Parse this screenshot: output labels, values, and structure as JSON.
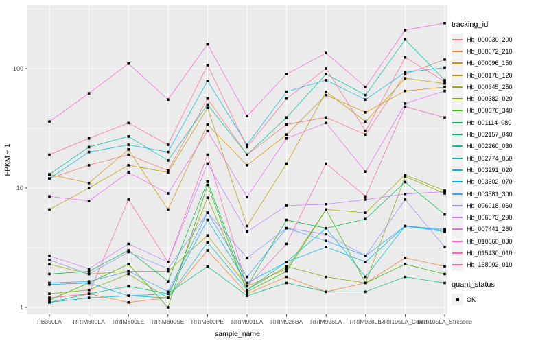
{
  "figure": {
    "background": "#FFFFFF",
    "panel_background": "#EBEBEB",
    "grid_color": "#FFFFFF",
    "tick_label_color": "#4D4D4D",
    "axis_title_color": "#000000",
    "legend_key_background": "#F2F2F2",
    "point_color": "#000000"
  },
  "chart_data": {
    "type": "line",
    "title": "",
    "xlabel": "sample_name",
    "ylabel": "FPKM + 1",
    "y_scale": "log10",
    "y_tick_labels": [
      "1",
      "10",
      "100"
    ],
    "y_tick_values": [
      1,
      10,
      100
    ],
    "y_minor_values": [
      3.162,
      31.62,
      316.2
    ],
    "ylim": [
      1,
      338
    ],
    "grid": true,
    "legend_position": "right",
    "categories": [
      "PB350LA",
      "RRIM600LA",
      "RRIM600LE",
      "RRIM600SE",
      "RRIM600PE",
      "RRIM901LA",
      "RRIM928BA",
      "RRIM928LA",
      "RRIM928LE",
      "RRII105LA_Control",
      "RRII105LA_Stressed"
    ],
    "series": [
      {
        "name": "Hb_000030_200",
        "color": "#F8766D",
        "values": [
          12,
          15.5,
          19,
          14,
          56,
          19,
          34,
          39,
          28,
          90,
          119
        ]
      },
      {
        "name": "Hb_000072_210",
        "color": "#EA8331",
        "values": [
          1.2,
          1.3,
          1.1,
          1.2,
          3.0,
          1.3,
          1.8,
          1.35,
          1.6,
          2.6,
          2.2
        ]
      },
      {
        "name": "Hb_000096_150",
        "color": "#D89000",
        "values": [
          13,
          11,
          21,
          6.6,
          34,
          15.5,
          28,
          60,
          43,
          65,
          70
        ]
      },
      {
        "name": "Hb_000178_120",
        "color": "#C09B00",
        "values": [
          6.6,
          10,
          15.5,
          13.5,
          47,
          4.8,
          16,
          64,
          36,
          83,
          75
        ]
      },
      {
        "name": "Hb_000345_250",
        "color": "#A3A500",
        "values": [
          2.3,
          1.9,
          2.0,
          2.0,
          4.0,
          1.5,
          2.1,
          6.6,
          6.2,
          12.9,
          9.5
        ]
      },
      {
        "name": "Hb_000382_020",
        "color": "#7CAE00",
        "values": [
          1.3,
          1.4,
          1.9,
          1.2,
          8.3,
          1.4,
          2.2,
          1.8,
          1.6,
          12.5,
          9.0
        ]
      },
      {
        "name": "Hb_000676_340",
        "color": "#39B600",
        "values": [
          1.15,
          1.6,
          2.3,
          1.0,
          10.6,
          1.35,
          2.0,
          6.6,
          1.6,
          2.3,
          1.9
        ]
      },
      {
        "name": "Hb_001114_080",
        "color": "#00BB4E",
        "values": [
          1.9,
          2.0,
          3.0,
          1.65,
          11.3,
          1.5,
          5.4,
          4.6,
          5.5,
          11.2,
          6.0
        ]
      },
      {
        "name": "Hb_002157_040",
        "color": "#00BF7D",
        "values": [
          1.1,
          1.3,
          1.5,
          1.3,
          2.2,
          1.25,
          1.6,
          1.35,
          1.35,
          1.8,
          1.6
        ]
      },
      {
        "name": "Hb_002260_030",
        "color": "#00C1A3",
        "values": [
          13,
          22,
          27,
          17,
          50,
          19,
          39,
          90,
          60,
          175,
          80
        ]
      },
      {
        "name": "Hb_002774_050",
        "color": "#00BFC4",
        "values": [
          1.1,
          1.2,
          1.25,
          1.2,
          3.5,
          1.4,
          2.4,
          4.6,
          1.8,
          4.8,
          4.3
        ]
      },
      {
        "name": "Hb_003291_020",
        "color": "#00BAE0",
        "values": [
          12,
          20,
          23,
          20,
          79,
          23,
          64,
          80,
          55,
          93,
          102
        ]
      },
      {
        "name": "Hb_003502_070",
        "color": "#00B0F6",
        "values": [
          1.55,
          1.6,
          1.25,
          1.3,
          5.4,
          1.6,
          2.4,
          3.2,
          2.4,
          4.8,
          4.4
        ]
      },
      {
        "name": "Hb_003581_300",
        "color": "#35A2FF",
        "values": [
          1.6,
          1.65,
          2.0,
          1.35,
          6.2,
          1.8,
          4.6,
          3.6,
          2.7,
          4.8,
          4.5
        ]
      },
      {
        "name": "Hb_006018_060",
        "color": "#9590FF",
        "values": [
          2.5,
          1.9,
          2.9,
          2.1,
          6.2,
          2.6,
          4.6,
          4.1,
          2.7,
          8.0,
          3.2
        ]
      },
      {
        "name": "Hb_006573_290",
        "color": "#C77CFF",
        "values": [
          2.7,
          2.1,
          3.4,
          2.4,
          16,
          4.3,
          7.1,
          7.3,
          8.0,
          8.9,
          9.3
        ]
      },
      {
        "name": "Hb_007441_260",
        "color": "#E76BF3",
        "values": [
          8.5,
          7.8,
          13.5,
          9.0,
          30,
          8.4,
          26,
          35,
          13.7,
          51,
          65
        ]
      },
      {
        "name": "Hb_010560_030",
        "color": "#FA62DB",
        "values": [
          36,
          62,
          110,
          55,
          160,
          40,
          90,
          135,
          70,
          210,
          240
        ]
      },
      {
        "name": "Hb_015430_010",
        "color": "#FF62BC",
        "values": [
          1.2,
          1.3,
          8.0,
          2.4,
          19,
          1.5,
          3.4,
          16,
          8.5,
          48,
          39
        ]
      },
      {
        "name": "Hb_158092_010",
        "color": "#FF6A98",
        "values": [
          19,
          26,
          35,
          23,
          107,
          22,
          56,
          100,
          30,
          124,
          78
        ]
      }
    ],
    "points": {
      "shape": "filled-square",
      "color": "#000000"
    },
    "legend": {
      "color_title": "tracking_id",
      "shape_title": "quant_status",
      "shape_items": [
        {
          "label": "OK"
        }
      ]
    }
  }
}
